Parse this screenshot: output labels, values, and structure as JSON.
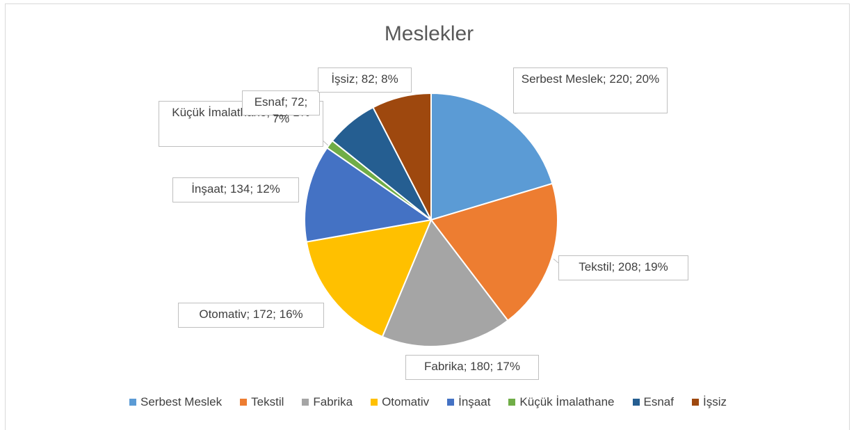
{
  "chart_data": {
    "type": "pie",
    "title": "Meslekler",
    "categories": [
      "Serbest Meslek",
      "Tekstil",
      "Fabrika",
      "Otomativ",
      "İnşaat",
      "Küçük İmalathane",
      "Esnaf",
      "İşsiz"
    ],
    "values": [
      220,
      208,
      180,
      172,
      134,
      12,
      72,
      82
    ],
    "value_labels": [
      "Serbest Meslek; 220; 20%",
      "Tekstil; 208; 19%",
      "Fabrika; 180; 17%",
      "Otomativ; 172; 16%",
      "İnşaat; 134; 12%",
      "Küçük İmalathane; 12; 1%",
      "Esnaf; 72; 7%",
      "İşsiz; 82; 8%"
    ],
    "colors": [
      "#5b9bd5",
      "#ed7d31",
      "#a5a5a5",
      "#ffc000",
      "#4472c4",
      "#70ad47",
      "#255e91",
      "#9e480e"
    ],
    "legend": "bottom"
  }
}
